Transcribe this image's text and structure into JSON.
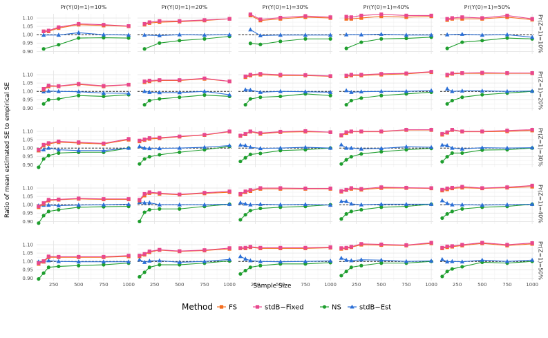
{
  "chart_data": {
    "type": "line",
    "facet_rows": [
      "Pr(Z=1)=10%",
      "Pr(Z=1)=20%",
      "Pr(Z=1)=30%",
      "Pr(Z=1)=40%",
      "Pr(Z=1)=50%"
    ],
    "facet_cols": [
      "Pr(Y(0)=1)=10%",
      "Pr(Y(0)=1)=20%",
      "Pr(Y(0)=1)=30%",
      "Pr(Y(0)=1)=40%",
      "Pr(Y(0)=1)=50%"
    ],
    "x": [
      100,
      150,
      200,
      300,
      500,
      750,
      1000
    ],
    "x_ticks": [
      250,
      500,
      750,
      1000
    ],
    "xlim": [
      80,
      1020
    ],
    "y_ticks": [
      0.9,
      0.95,
      1.0,
      1.05,
      1.1
    ],
    "y_tick_labels": [
      "0.90",
      "0.95",
      "1.00",
      "1.05",
      "1.10"
    ],
    "ylim": [
      0.885,
      1.125
    ],
    "reference_line": 1.0,
    "xlabel": "Sample Size",
    "ylabel": "Ratio of mean estimated SE to empirical SE",
    "legend": {
      "title": "Method",
      "position": "bottom",
      "entries": [
        {
          "name": "FS",
          "color": "#F46D1F",
          "marker": "square"
        },
        {
          "name": "stdB−Fixed",
          "color": "#E8488E",
          "marker": "square"
        },
        {
          "name": "NS",
          "color": "#1E9E2E",
          "marker": "circle"
        },
        {
          "name": "stdB−Est",
          "color": "#2B6FD6",
          "marker": "triangle"
        }
      ]
    },
    "panels": [
      [
        {
          "FS": [
            null,
            1.02,
            1.02,
            1.04,
            1.06,
            1.055,
            1.05
          ],
          "stdB−Fixed": [
            null,
            1.02,
            1.025,
            1.045,
            1.065,
            1.06,
            1.052
          ],
          "NS": [
            null,
            0.915,
            null,
            0.94,
            0.98,
            0.982,
            0.98
          ],
          "stdB−Est": [
            null,
            0.998,
            null,
            0.998,
            1.012,
            1.0,
            0.998
          ]
        },
        {
          "FS": [
            null,
            1.06,
            1.07,
            1.075,
            1.078,
            1.085,
            1.095
          ],
          "stdB−Fixed": [
            null,
            1.065,
            1.075,
            1.082,
            1.082,
            1.088,
            1.095
          ],
          "NS": [
            null,
            0.915,
            null,
            0.95,
            0.965,
            0.975,
            0.99
          ],
          "stdB−Est": [
            null,
            0.998,
            null,
            0.995,
            1.0,
            0.998,
            1.0
          ]
        },
        {
          "FS": [
            null,
            null,
            1.115,
            1.085,
            1.095,
            1.105,
            1.1
          ],
          "stdB−Fixed": [
            null,
            null,
            1.122,
            1.092,
            1.102,
            1.112,
            1.105
          ],
          "NS": [
            null,
            null,
            0.948,
            0.942,
            0.96,
            0.975,
            0.975
          ],
          "stdB−Est": [
            null,
            null,
            1.03,
            0.995,
            0.998,
            0.998,
            0.998
          ]
        },
        {
          "FS": [
            null,
            1.095,
            1.095,
            1.1,
            1.11,
            1.105,
            1.11
          ],
          "stdB−Fixed": [
            null,
            1.108,
            1.105,
            1.115,
            1.122,
            1.115,
            1.115
          ],
          "NS": [
            null,
            0.918,
            null,
            0.955,
            0.975,
            0.978,
            0.985
          ],
          "stdB−Est": [
            null,
            1.0,
            null,
            1.0,
            1.003,
            0.998,
            0.998
          ]
        },
        {
          "FS": [
            null,
            1.088,
            1.095,
            1.095,
            1.095,
            1.105,
            1.09
          ],
          "stdB−Fixed": [
            null,
            1.095,
            1.1,
            1.105,
            1.1,
            1.115,
            1.095
          ],
          "NS": [
            null,
            0.918,
            null,
            0.955,
            0.965,
            0.98,
            0.975
          ],
          "stdB−Est": [
            null,
            1.0,
            null,
            1.003,
            0.998,
            1.0,
            0.985
          ]
        }
      ],
      [
        {
          "FS": [
            null,
            1.01,
            1.03,
            1.03,
            1.042,
            1.03,
            1.04
          ],
          "stdB−Fixed": [
            null,
            1.015,
            1.035,
            1.032,
            1.045,
            1.033,
            1.04
          ],
          "NS": [
            null,
            0.925,
            0.95,
            0.955,
            0.975,
            0.97,
            0.98
          ],
          "stdB−Est": [
            null,
            0.998,
            1.002,
            1.0,
            0.998,
            0.99,
            0.988
          ]
        },
        {
          "FS": [
            null,
            1.055,
            1.06,
            1.065,
            1.065,
            1.075,
            1.06
          ],
          "stdB−Fixed": [
            null,
            1.06,
            1.065,
            1.068,
            1.068,
            1.078,
            1.06
          ],
          "NS": [
            null,
            0.92,
            0.945,
            0.955,
            0.965,
            0.978,
            0.97
          ],
          "stdB−Est": [
            null,
            1.0,
            0.995,
            0.993,
            0.993,
            1.0,
            0.98
          ]
        },
        {
          "FS": [
            null,
            1.085,
            1.095,
            1.1,
            1.095,
            1.095,
            1.09
          ],
          "stdB−Fixed": [
            null,
            1.09,
            1.1,
            1.105,
            1.1,
            1.098,
            1.092
          ],
          "NS": [
            null,
            0.92,
            0.955,
            0.965,
            0.97,
            0.985,
            0.975
          ],
          "stdB−Est": [
            null,
            1.01,
            1.008,
            0.995,
            1.0,
            0.998,
            0.995
          ]
        },
        {
          "FS": [
            null,
            1.09,
            1.095,
            1.095,
            1.1,
            1.105,
            1.115
          ],
          "stdB−Fixed": [
            null,
            1.095,
            1.1,
            1.1,
            1.105,
            1.108,
            1.118
          ],
          "NS": [
            null,
            0.92,
            0.945,
            0.96,
            0.975,
            0.985,
            0.995
          ],
          "stdB−Est": [
            null,
            1.005,
            0.995,
            0.998,
            1.0,
            1.0,
            1.005
          ]
        },
        {
          "FS": [
            null,
            1.095,
            1.105,
            1.108,
            1.108,
            1.108,
            1.108
          ],
          "stdB−Fixed": [
            null,
            1.1,
            1.108,
            1.11,
            1.112,
            1.11,
            1.11
          ],
          "NS": [
            null,
            0.925,
            0.945,
            0.965,
            0.98,
            0.99,
            1.0
          ],
          "stdB−Est": [
            null,
            1.015,
            1.0,
            1.003,
            1.003,
            1.0,
            1.002
          ]
        }
      ],
      [
        {
          "FS": [
            0.985,
            1.015,
            1.025,
            1.035,
            1.03,
            1.025,
            1.05
          ],
          "stdB−Fixed": [
            0.99,
            1.02,
            1.03,
            1.04,
            1.035,
            1.028,
            1.055
          ],
          "NS": [
            0.885,
            0.935,
            0.955,
            0.97,
            0.975,
            0.975,
            1.0
          ],
          "stdB−Est": [
            0.985,
            0.99,
            1.0,
            0.99,
            0.985,
            0.985,
            1.0
          ]
        },
        {
          "FS": [
            1.04,
            1.048,
            1.055,
            1.058,
            1.068,
            1.078,
            1.098
          ],
          "stdB−Fixed": [
            1.045,
            1.052,
            1.06,
            1.062,
            1.07,
            1.08,
            1.1
          ],
          "NS": [
            0.905,
            0.935,
            0.948,
            0.96,
            0.975,
            0.99,
            1.01
          ],
          "stdB−Est": [
            1.01,
            1.0,
            0.998,
            0.998,
            1.0,
            1.005,
            1.015
          ]
        },
        {
          "FS": [
            1.072,
            1.082,
            1.098,
            1.085,
            1.095,
            1.098,
            1.095
          ],
          "stdB−Fixed": [
            1.075,
            1.085,
            1.1,
            1.09,
            1.098,
            1.102,
            1.095
          ],
          "NS": [
            0.92,
            0.942,
            0.962,
            0.968,
            0.985,
            0.99,
            1.0
          ],
          "stdB−Est": [
            1.018,
            1.015,
            1.005,
            0.998,
            1.0,
            1.005,
            1.0
          ]
        },
        {
          "FS": [
            1.075,
            1.09,
            1.098,
            1.098,
            1.098,
            1.108,
            1.108
          ],
          "stdB−Fixed": [
            1.078,
            1.095,
            1.1,
            1.1,
            1.1,
            1.11,
            1.11
          ],
          "NS": [
            0.905,
            0.93,
            0.948,
            0.965,
            0.978,
            0.99,
            0.998
          ],
          "stdB−Est": [
            1.02,
            1.0,
            1.0,
            0.995,
            0.998,
            1.008,
            1.005
          ]
        },
        {
          "FS": [
            1.08,
            1.092,
            1.108,
            1.098,
            1.098,
            1.1,
            1.105
          ],
          "stdB−Fixed": [
            1.085,
            1.095,
            1.11,
            1.1,
            1.1,
            1.105,
            1.11
          ],
          "NS": [
            0.918,
            0.948,
            0.97,
            0.97,
            0.988,
            0.99,
            1.0
          ],
          "stdB−Est": [
            1.018,
            1.015,
            1.0,
            0.995,
            1.002,
            1.0,
            1.002
          ]
        }
      ],
      [
        {
          "FS": [
            0.985,
            1.005,
            1.025,
            1.03,
            1.035,
            1.032,
            1.032
          ],
          "stdB−Fixed": [
            0.99,
            1.01,
            1.03,
            1.032,
            1.038,
            1.035,
            1.035
          ],
          "NS": [
            0.89,
            0.935,
            0.96,
            0.97,
            0.985,
            0.988,
            0.99
          ],
          "stdB−Est": [
            0.995,
            0.998,
            0.998,
            0.995,
            0.998,
            1.0,
            1.003
          ]
        },
        {
          "FS": [
            1.025,
            1.055,
            1.07,
            1.065,
            1.06,
            1.068,
            1.075
          ],
          "stdB−Fixed": [
            1.03,
            1.065,
            1.075,
            1.07,
            1.062,
            1.072,
            1.08
          ],
          "NS": [
            0.9,
            0.955,
            0.97,
            0.975,
            0.975,
            0.99,
            1.003
          ],
          "stdB−Est": [
            1.015,
            1.012,
            1.012,
            1.0,
            1.0,
            1.0,
            1.003
          ]
        },
        {
          "FS": [
            1.06,
            1.075,
            1.082,
            1.095,
            1.095,
            1.095,
            1.095
          ],
          "stdB−Fixed": [
            1.065,
            1.08,
            1.088,
            1.1,
            1.1,
            1.098,
            1.098
          ],
          "NS": [
            0.91,
            0.94,
            0.965,
            0.978,
            0.985,
            0.99,
            1.0
          ],
          "stdB−Est": [
            1.012,
            1.005,
            1.0,
            1.003,
            1.0,
            1.002,
            0.998
          ]
        },
        {
          "FS": [
            1.078,
            1.088,
            1.095,
            1.09,
            1.1,
            1.1,
            1.098
          ],
          "stdB−Fixed": [
            1.082,
            1.09,
            1.1,
            1.095,
            1.105,
            1.102,
            1.1
          ],
          "NS": [
            0.915,
            0.945,
            0.96,
            0.97,
            0.985,
            0.99,
            1.003
          ],
          "stdB−Est": [
            1.02,
            1.02,
            1.005,
            1.0,
            1.003,
            1.003,
            1.003
          ]
        },
        {
          "FS": [
            1.085,
            1.092,
            1.098,
            1.102,
            1.098,
            1.102,
            1.108
          ],
          "stdB−Fixed": [
            1.09,
            1.098,
            1.102,
            1.108,
            1.1,
            1.105,
            1.115
          ],
          "NS": [
            0.92,
            0.945,
            0.96,
            0.975,
            0.985,
            0.99,
            1.003
          ],
          "stdB−Est": [
            1.025,
            1.008,
            1.0,
            1.0,
            0.998,
            1.0,
            1.003
          ]
        }
      ],
      [
        {
          "FS": [
            0.985,
            0.998,
            1.025,
            1.025,
            1.025,
            1.025,
            1.03
          ],
          "stdB−Fixed": [
            0.99,
            1.002,
            1.03,
            1.028,
            1.028,
            1.028,
            1.035
          ],
          "NS": [
            0.895,
            0.93,
            0.965,
            0.97,
            0.975,
            0.98,
            0.99
          ],
          "stdB−Est": [
            0.998,
            0.998,
            1.005,
            1.0,
            0.998,
            0.998,
            0.998
          ]
        },
        {
          "FS": [
            1.03,
            1.04,
            1.055,
            1.068,
            1.06,
            1.065,
            1.075
          ],
          "stdB−Fixed": [
            1.035,
            1.045,
            1.06,
            1.07,
            1.062,
            1.068,
            1.08
          ],
          "NS": [
            0.908,
            0.935,
            0.965,
            0.98,
            0.98,
            0.99,
            1.003
          ],
          "stdB−Est": [
            1.01,
            0.995,
            1.003,
            1.005,
            0.995,
            1.0,
            1.012
          ]
        },
        {
          "FS": [
            1.078,
            1.078,
            1.085,
            1.078,
            1.078,
            1.078,
            1.082
          ],
          "stdB−Fixed": [
            1.08,
            1.082,
            1.088,
            1.082,
            1.082,
            1.082,
            1.085
          ],
          "NS": [
            0.925,
            0.945,
            0.965,
            0.975,
            0.985,
            0.985,
            0.993
          ],
          "stdB−Est": [
            1.03,
            1.015,
            1.005,
            1.0,
            0.998,
            1.0,
            1.003
          ]
        },
        {
          "FS": [
            1.075,
            1.078,
            1.085,
            1.1,
            1.098,
            1.095,
            1.108
          ],
          "stdB−Fixed": [
            1.08,
            1.082,
            1.088,
            1.105,
            1.102,
            1.098,
            1.112
          ],
          "NS": [
            0.915,
            0.94,
            0.965,
            0.975,
            0.99,
            0.99,
            1.0
          ],
          "stdB−Est": [
            1.02,
            1.008,
            1.005,
            1.01,
            1.008,
            1.0,
            1.003
          ]
        },
        {
          "FS": [
            1.078,
            1.085,
            1.088,
            1.095,
            1.108,
            1.095,
            1.105
          ],
          "stdB−Fixed": [
            1.082,
            1.09,
            1.092,
            1.1,
            1.112,
            1.1,
            1.11
          ],
          "NS": [
            0.91,
            0.94,
            0.955,
            0.968,
            0.995,
            0.99,
            1.0
          ],
          "stdB−Est": [
            1.012,
            0.998,
            1.0,
            0.998,
            1.008,
            1.0,
            1.008
          ]
        }
      ]
    ]
  }
}
